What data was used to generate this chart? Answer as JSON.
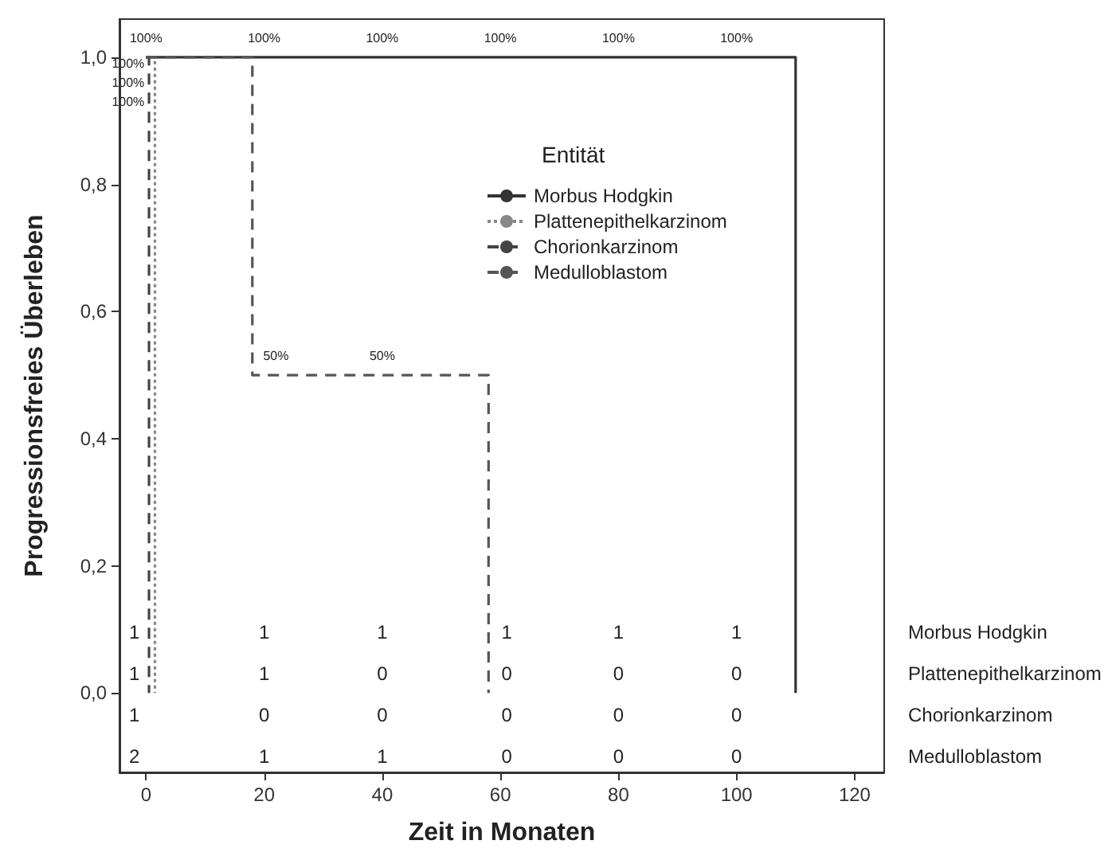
{
  "chart_data": {
    "type": "line",
    "xlabel": "Zeit in Monaten",
    "ylabel": "Progressionsfreies Überleben",
    "legend_title": "Entität",
    "legend": "right",
    "marker": "none",
    "grid": false,
    "xlim": [
      -4.5,
      125
    ],
    "xticks": [
      0,
      20,
      40,
      60,
      80,
      100,
      120
    ],
    "ylim": [
      -0.125,
      1.06
    ],
    "yticks": [
      {
        "value": 0,
        "label": "0,0"
      },
      {
        "value": 0.2,
        "label": "0,2"
      },
      {
        "value": 0.4,
        "label": "0,4"
      },
      {
        "value": 0.6,
        "label": "0,6"
      },
      {
        "value": 0.8,
        "label": "0,8"
      },
      {
        "value": 1,
        "label": "1,0"
      }
    ],
    "series": [
      {
        "name": "Morbus Hodgkin",
        "color": "#333333",
        "line_style": "solid",
        "x": [
          0,
          110,
          110
        ],
        "values": [
          1,
          1,
          0
        ]
      },
      {
        "name": "Plattenepithelkarzinom",
        "color": "#888888",
        "line_style": "dotted",
        "x": [
          0,
          1.5,
          1.5
        ],
        "values": [
          1,
          1,
          0
        ]
      },
      {
        "name": "Chorionkarzinom",
        "color": "#444444",
        "line_style": "dashed",
        "x": [
          0,
          0.5,
          0.5
        ],
        "values": [
          1,
          1,
          0
        ]
      },
      {
        "name": "Medulloblastom",
        "color": "#555555",
        "line_style": "dashed",
        "x": [
          0,
          18,
          18,
          58,
          58
        ],
        "values": [
          1,
          1,
          0.5,
          0.5,
          0
        ]
      }
    ],
    "annotations": [
      "100%",
      "100%",
      "100%",
      "100%",
      "100%",
      "100%",
      "100%",
      "100%",
      "100%",
      "50%",
      "50%",
      "1",
      "1",
      "1",
      "1",
      "1",
      "1",
      "1",
      "1",
      "0",
      "0",
      "0",
      "0",
      "1",
      "0",
      "0",
      "0",
      "0",
      "0",
      "2",
      "1",
      "1",
      "0",
      "0",
      "0",
      "Morbus Hodgkin",
      "Plattenepithelkarzinom",
      "Chorionkarzinom",
      "Medulloblastom"
    ]
  }
}
